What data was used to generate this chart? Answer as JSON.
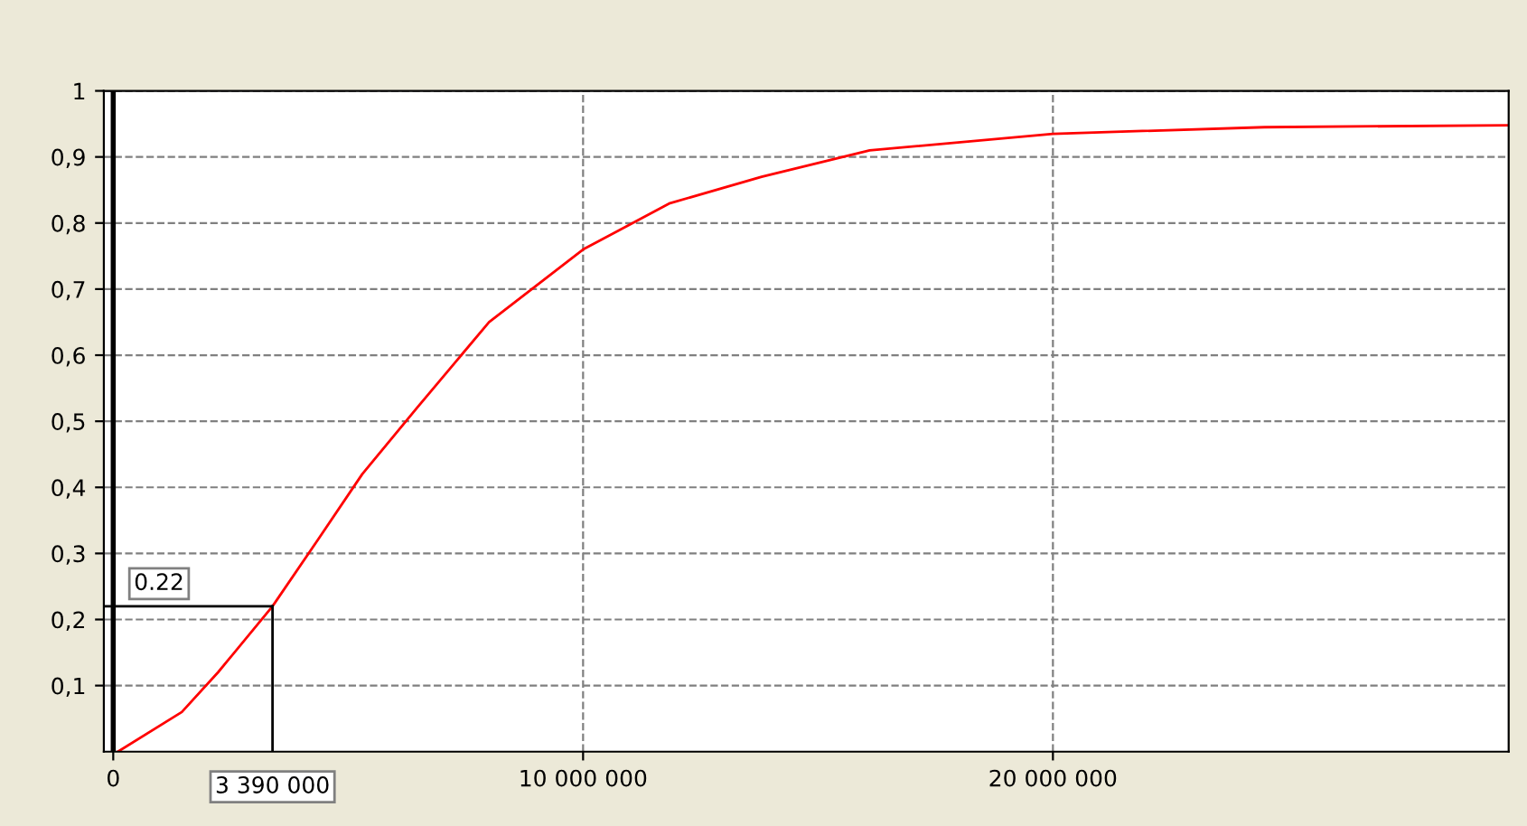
{
  "chart_data": {
    "type": "line",
    "x": [
      100000,
      1460000,
      2230000,
      3390000,
      4350000,
      5300000,
      6460000,
      8000000,
      10000000,
      11850000,
      13800000,
      16100000,
      20000000,
      24500000,
      29700000
    ],
    "series": [
      {
        "color": "#ff0000",
        "values": [
          0,
          0.06,
          0.12,
          0.22,
          0.32,
          0.42,
          0.52,
          0.65,
          0.76,
          0.83,
          0.87,
          0.91,
          0.935,
          0.945,
          0.948
        ]
      }
    ],
    "xlim": [
      -200000,
      29700000
    ],
    "xticks": [
      {
        "value": 0,
        "label": "0"
      },
      {
        "value": 10000000,
        "label": "10 000 000"
      },
      {
        "value": 20000000,
        "label": "20 000 000"
      }
    ],
    "ylim": [
      0,
      1
    ],
    "yticks": [
      {
        "value": 0.1,
        "label": "0,1"
      },
      {
        "value": 0.2,
        "label": "0,2"
      },
      {
        "value": 0.3,
        "label": "0,3"
      },
      {
        "value": 0.4,
        "label": "0,4"
      },
      {
        "value": 0.5,
        "label": "0,5"
      },
      {
        "value": 0.6,
        "label": "0,6"
      },
      {
        "value": 0.7,
        "label": "0,7"
      },
      {
        "value": 0.8,
        "label": "0,8"
      },
      {
        "value": 0.9,
        "label": "0,9"
      },
      {
        "value": 1,
        "label": "1"
      }
    ],
    "ref_lines": [
      {
        "axis": "x",
        "value": 3390000,
        "label": "3 390 000",
        "color": "#000000"
      },
      {
        "axis": "y",
        "value": 0.22,
        "label": "0.22",
        "color": "#000000"
      }
    ],
    "grid": true,
    "line_style": "solid",
    "marker": "none"
  }
}
